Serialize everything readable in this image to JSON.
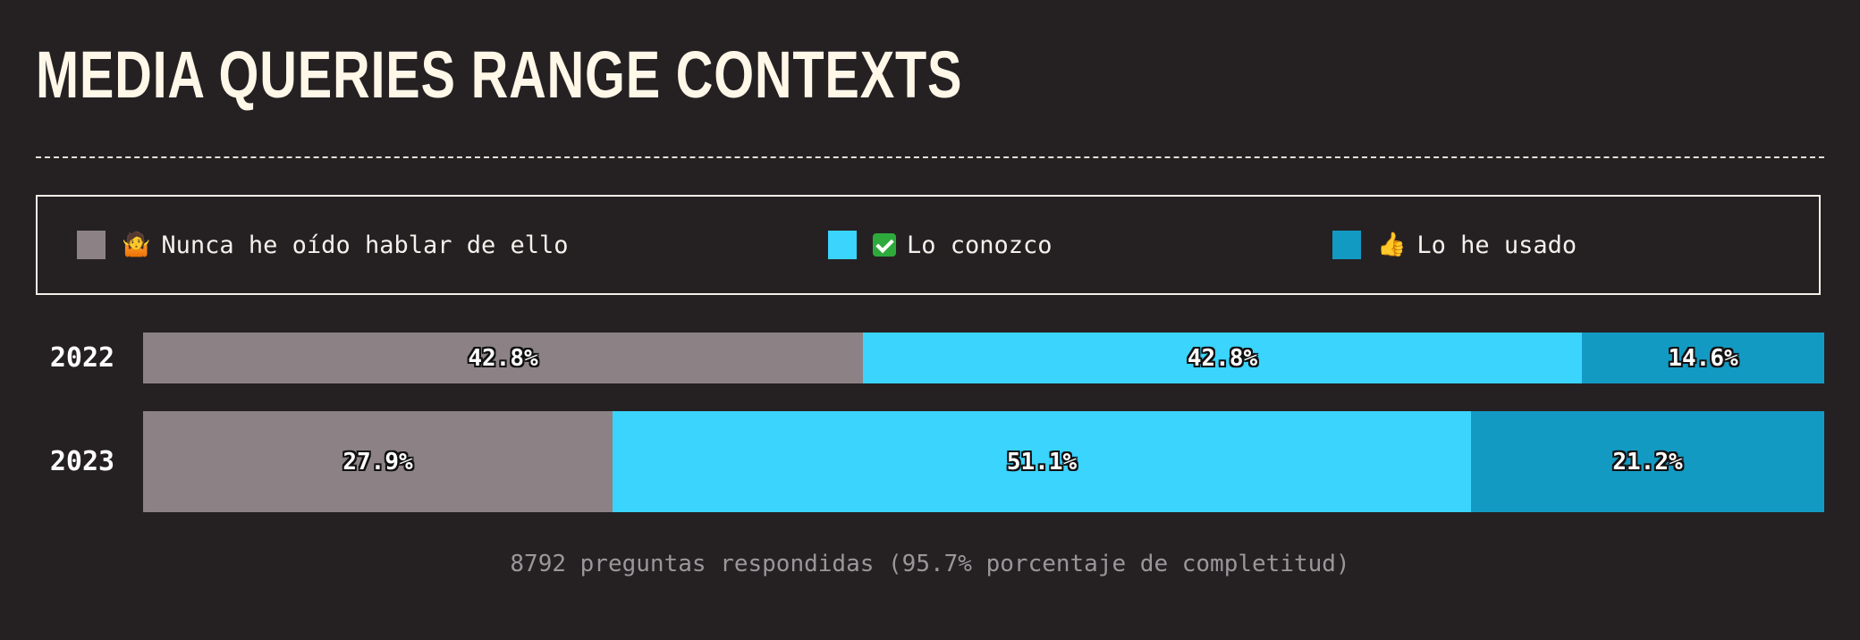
{
  "title": "MEDIA QUERIES RANGE CONTEXTS",
  "legend": [
    {
      "emoji": "🤷",
      "label": "Nunca he oído hablar de ello",
      "color": "#8c8286",
      "icon": "shrug-icon"
    },
    {
      "emoji": "✅",
      "label": "Lo conozco",
      "color": "#3ad4fd",
      "icon": "check-mark-icon"
    },
    {
      "emoji": "👍",
      "label": "Lo he usado",
      "color": "#139ac3",
      "icon": "thumbs-up-icon"
    }
  ],
  "chart_data": {
    "type": "bar",
    "orientation": "horizontal",
    "stacked": true,
    "unit": "%",
    "categories": [
      "2022",
      "2023"
    ],
    "series": [
      {
        "name": "Nunca he oído hablar de ello",
        "values": [
          42.8,
          27.9
        ],
        "labels": [
          "42.8%",
          "27.9%"
        ]
      },
      {
        "name": "Lo conozco",
        "values": [
          42.8,
          51.1
        ],
        "labels": [
          "42.8%",
          "51.1%"
        ]
      },
      {
        "name": "Lo he usado",
        "values": [
          14.6,
          21.2
        ],
        "labels": [
          "14.6%",
          "21.2%"
        ]
      }
    ],
    "xlim": [
      0,
      100
    ]
  },
  "footer": "8792 preguntas respondidas (95.7% porcentaje de completitud)"
}
